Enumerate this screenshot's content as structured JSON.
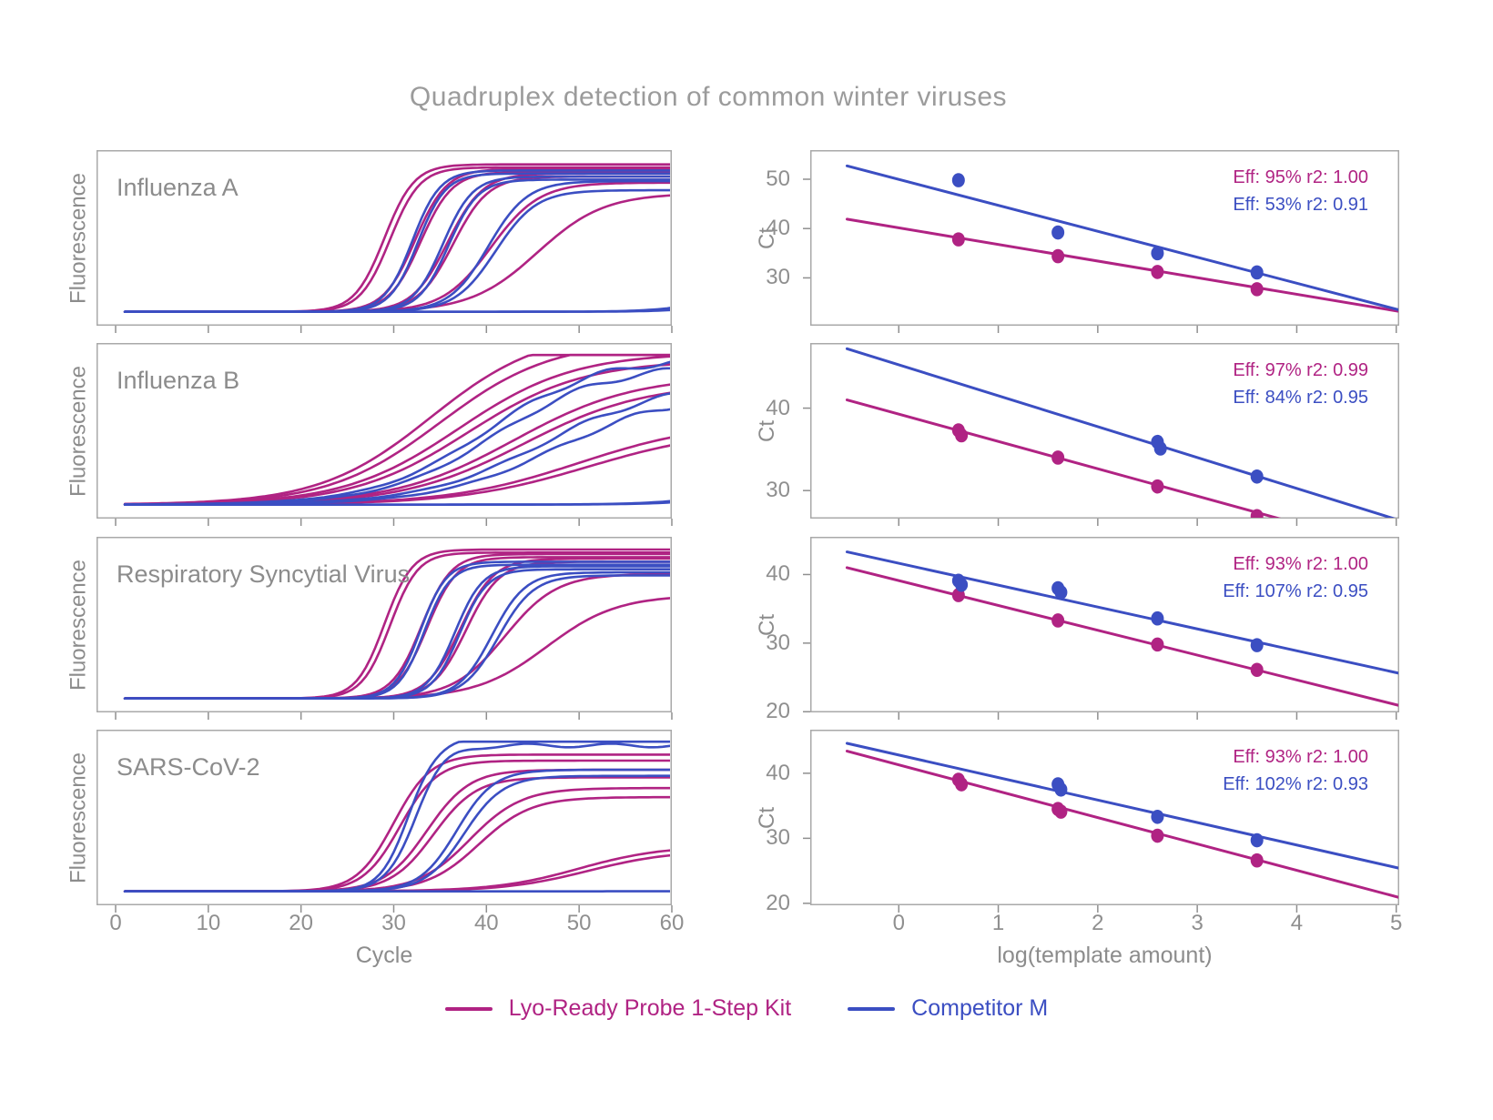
{
  "title": "Quadruplex detection of common winter viruses",
  "colors": {
    "kit": "#b02383",
    "competitor": "#3b4ec2",
    "axis_text": "#8f8f8f",
    "panel_border": "#a9a9a9",
    "panel_label": "#8c8c8c",
    "title_text": "#9b9b9b"
  },
  "legend": {
    "kit_label": "Lyo-Ready Probe 1-Step Kit",
    "competitor_label": "Competitor M"
  },
  "left_axis": {
    "ylabel": "Fluorescence",
    "xlabel": "Cycle",
    "xticks": [
      0,
      10,
      20,
      30,
      40,
      50,
      60
    ],
    "x_range": [
      1,
      60
    ]
  },
  "right_axis": {
    "ylabel": "Ct",
    "xlabel": "log(template amount)",
    "xticks": [
      0,
      1,
      2,
      3,
      4,
      5
    ],
    "xlim": [
      -0.89,
      5.03
    ]
  },
  "chart_data": [
    {
      "virus": "Influenza A",
      "amplification": {
        "type": "line",
        "x_range_cycles": [
          1,
          60
        ],
        "kit_curves_ct_k_plateau": [
          [
            29,
            1.6,
            0.97
          ],
          [
            29.6,
            1.6,
            0.95
          ],
          [
            32.3,
            1.7,
            0.94
          ],
          [
            32.9,
            1.7,
            0.92
          ],
          [
            35.8,
            1.9,
            0.91
          ],
          [
            36.4,
            1.9,
            0.89
          ],
          [
            40.5,
            2.6,
            0.85
          ],
          [
            45.5,
            3.6,
            0.78
          ]
        ],
        "comp_curves_ct_k_plateau": [
          [
            32,
            1.5,
            0.93
          ],
          [
            32.6,
            1.5,
            0.91
          ],
          [
            35.3,
            1.6,
            0.89
          ],
          [
            35.9,
            1.6,
            0.87
          ],
          [
            40.2,
            2.1,
            0.86
          ],
          [
            41,
            2.2,
            0.8
          ],
          [
            67,
            3.0,
            0.3
          ],
          [
            69,
            3.0,
            0.25
          ]
        ]
      },
      "standard_curve": {
        "type": "scatter",
        "ylim": [
          20.3,
          55.9
        ],
        "yticks": [
          30,
          40,
          50
        ],
        "kit": {
          "points": [
            [
              0.6,
              37.8
            ],
            [
              1.6,
              34.4
            ],
            [
              2.6,
              31.2
            ],
            [
              3.6,
              27.7
            ]
          ],
          "fit_line": [
            [
              -0.52,
              41.9
            ],
            [
              5.03,
              23.2
            ]
          ],
          "annotation": "Eff: 95% r2: 1.00"
        },
        "comp": {
          "points": [
            [
              0.6,
              49.8
            ],
            [
              1.6,
              39.2
            ],
            [
              2.6,
              35.0
            ],
            [
              3.6,
              31.1
            ]
          ],
          "fit_line": [
            [
              -0.52,
              52.7
            ],
            [
              5.03,
              23.5
            ]
          ],
          "annotation": "Eff: 53% r2: 0.91"
        }
      }
    },
    {
      "virus": "Influenza B",
      "amplification": {
        "type": "line",
        "x_range_cycles": [
          1,
          60
        ],
        "kit_curves_ct_k_plateau": [
          [
            34,
            6,
            1.15
          ],
          [
            35,
            6,
            1.08
          ],
          [
            37,
            6.2,
            1.0
          ],
          [
            38,
            6.2,
            0.95
          ],
          [
            43,
            6.5,
            0.85
          ],
          [
            44,
            6.5,
            0.8
          ],
          [
            50,
            7,
            0.55
          ],
          [
            51,
            7,
            0.5
          ]
        ],
        "comp_curves_ct_k_plateau": [
          [
            40,
            6,
            0.97,
            0.02
          ],
          [
            41,
            6,
            0.92,
            0.02
          ],
          [
            46,
            6.5,
            0.8,
            0.02
          ],
          [
            47.5,
            6.5,
            0.74,
            0.02
          ],
          [
            68,
            4,
            0.2
          ],
          [
            70,
            4,
            0.2
          ]
        ]
      },
      "standard_curve": {
        "type": "scatter",
        "ylim": [
          26.6,
          47.9
        ],
        "yticks": [
          30,
          40
        ],
        "kit": {
          "points": [
            [
              0.6,
              37.3
            ],
            [
              0.63,
              36.7
            ],
            [
              1.6,
              34.0
            ],
            [
              2.6,
              30.5
            ],
            [
              3.6,
              26.9
            ]
          ],
          "fit_line": [
            [
              -0.52,
              41.0
            ],
            [
              5.03,
              22.6
            ]
          ],
          "annotation": "Eff: 97% r2: 0.99"
        },
        "comp": {
          "points": [
            [
              2.6,
              35.9
            ],
            [
              2.63,
              35.1
            ],
            [
              3.6,
              31.7
            ]
          ],
          "fit_line": [
            [
              -0.52,
              47.2
            ],
            [
              5.03,
              26.4
            ]
          ],
          "annotation": "Eff: 84% r2: 0.95"
        }
      }
    },
    {
      "virus": "Respiratory Syncytial Virus",
      "amplification": {
        "type": "line",
        "x_range_cycles": [
          1,
          60
        ],
        "kit_curves_ct_k_plateau": [
          [
            29,
            1.5,
            0.98
          ],
          [
            29.6,
            1.5,
            0.96
          ],
          [
            33,
            1.6,
            0.95
          ],
          [
            33.6,
            1.6,
            0.93
          ],
          [
            37.2,
            1.8,
            0.92
          ],
          [
            37.8,
            1.8,
            0.9
          ],
          [
            42,
            2.8,
            0.82
          ],
          [
            46.5,
            3.8,
            0.68
          ]
        ],
        "comp_curves_ct_k_plateau": [
          [
            32.9,
            1.4,
            0.9
          ],
          [
            33.3,
            1.4,
            0.88
          ],
          [
            36.6,
            1.5,
            0.87
          ],
          [
            37.1,
            1.5,
            0.85
          ],
          [
            40.6,
            1.8,
            0.83
          ],
          [
            41.3,
            1.9,
            0.81
          ]
        ]
      },
      "standard_curve": {
        "type": "scatter",
        "ylim": [
          19.9,
          45.5
        ],
        "yticks": [
          20,
          30,
          40
        ],
        "kit": {
          "points": [
            [
              0.6,
              37.0
            ],
            [
              1.6,
              33.3
            ],
            [
              2.6,
              29.8
            ],
            [
              3.6,
              26.1
            ]
          ],
          "fit_line": [
            [
              -0.52,
              41.0
            ],
            [
              5.03,
              20.9
            ]
          ],
          "annotation": "Eff: 93% r2: 1.00"
        },
        "comp": {
          "points": [
            [
              0.6,
              39.1
            ],
            [
              0.63,
              38.5
            ],
            [
              1.6,
              38.0
            ],
            [
              1.63,
              37.4
            ],
            [
              2.6,
              33.6
            ],
            [
              3.6,
              29.7
            ]
          ],
          "fit_line": [
            [
              -0.52,
              43.3
            ],
            [
              5.03,
              25.6
            ]
          ],
          "annotation": "Eff: 107% r2: 0.95"
        }
      }
    },
    {
      "virus": "SARS-CoV-2",
      "amplification": {
        "type": "line",
        "x_range_cycles": [
          1,
          60
        ],
        "kit_curves_ct_k_plateau": [
          [
            30,
            2.0,
            0.9
          ],
          [
            30.7,
            2.0,
            0.86
          ],
          [
            33.6,
            2.3,
            0.8
          ],
          [
            34.3,
            2.3,
            0.75
          ],
          [
            38.2,
            2.8,
            0.68
          ],
          [
            39.2,
            2.8,
            0.62
          ],
          [
            50,
            4.5,
            0.3
          ],
          [
            51,
            4.5,
            0.27
          ]
        ],
        "comp_curves_ct_k_plateau": [
          [
            31.6,
            1.5,
            1.0,
            0.012
          ],
          [
            32.3,
            1.6,
            0.96,
            0.012
          ],
          [
            36.8,
            2.0,
            0.8
          ],
          [
            37.6,
            2.1,
            0.76
          ],
          [
            75,
            3,
            0.1
          ]
        ]
      },
      "standard_curve": {
        "type": "scatter",
        "ylim": [
          19.7,
          46.7
        ],
        "yticks": [
          20,
          30,
          40
        ],
        "kit": {
          "points": [
            [
              0.6,
              39.0
            ],
            [
              0.63,
              38.3
            ],
            [
              1.6,
              34.5
            ],
            [
              1.63,
              34.1
            ],
            [
              2.6,
              30.4
            ],
            [
              3.6,
              26.6
            ]
          ],
          "fit_line": [
            [
              -0.52,
              43.4
            ],
            [
              5.03,
              20.9
            ]
          ],
          "annotation": "Eff: 93% r2: 1.00"
        },
        "comp": {
          "points": [
            [
              1.6,
              38.3
            ],
            [
              1.63,
              37.5
            ],
            [
              2.6,
              33.3
            ],
            [
              3.6,
              29.7
            ]
          ],
          "fit_line": [
            [
              -0.52,
              44.6
            ],
            [
              5.03,
              25.4
            ]
          ],
          "annotation": "Eff: 102% r2: 0.93"
        }
      }
    }
  ]
}
